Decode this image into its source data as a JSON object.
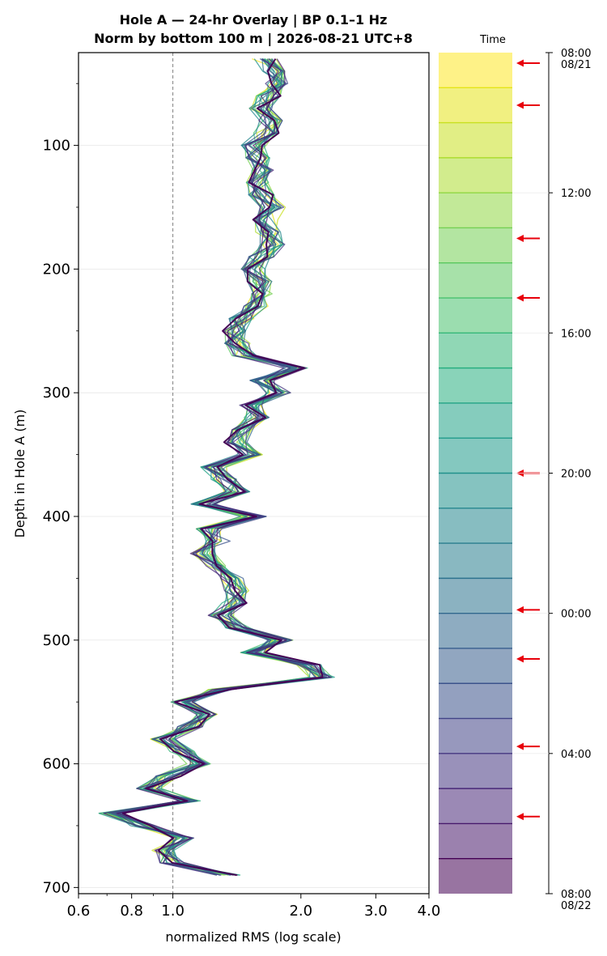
{
  "chart_data": {
    "type": "line",
    "title": "Hole A — 24-hr Overlay  |  BP 0.1–1 Hz",
    "subtitle": "Norm by bottom 100 m  |  2026-08-21 UTC+8",
    "xlabel": "normalized RMS  (log scale)",
    "ylabel": "Depth in Hole A (m)",
    "x_scale": "log",
    "xlim": [
      0.6,
      4.0
    ],
    "ylim": [
      705,
      25
    ],
    "x_ticks": [
      "0.6",
      "0.8",
      "1.0",
      "2.0",
      "3.0",
      "4.0"
    ],
    "x_tick_values": [
      0.6,
      0.8,
      1.0,
      2.0,
      3.0,
      4.0
    ],
    "y_ticks": [
      "100",
      "200",
      "300",
      "400",
      "500",
      "600",
      "700"
    ],
    "y_tick_values": [
      100,
      200,
      300,
      400,
      500,
      600,
      700
    ],
    "reference_line": {
      "x": 1.0,
      "style": "dashed",
      "color": "#808080"
    },
    "grid": "horizontal",
    "depth": [
      30,
      40,
      50,
      60,
      70,
      80,
      90,
      100,
      110,
      120,
      130,
      140,
      150,
      160,
      170,
      180,
      190,
      200,
      210,
      220,
      230,
      240,
      250,
      260,
      270,
      280,
      290,
      300,
      310,
      320,
      330,
      340,
      350,
      360,
      370,
      380,
      390,
      400,
      410,
      420,
      430,
      440,
      450,
      460,
      470,
      480,
      490,
      500,
      510,
      520,
      530,
      540,
      550,
      560,
      570,
      580,
      590,
      600,
      610,
      620,
      630,
      640,
      650,
      660,
      670,
      680,
      690
    ],
    "reference_profile": [
      1.65,
      1.72,
      1.75,
      1.68,
      1.62,
      1.7,
      1.66,
      1.55,
      1.58,
      1.65,
      1.57,
      1.62,
      1.72,
      1.66,
      1.68,
      1.72,
      1.62,
      1.55,
      1.6,
      1.62,
      1.58,
      1.45,
      1.4,
      1.42,
      1.48,
      1.95,
      1.62,
      1.78,
      1.52,
      1.58,
      1.45,
      1.4,
      1.52,
      1.25,
      1.32,
      1.42,
      1.18,
      1.55,
      1.22,
      1.28,
      1.18,
      1.25,
      1.38,
      1.42,
      1.4,
      1.3,
      1.42,
      1.8,
      1.55,
      2.1,
      2.25,
      1.3,
      1.05,
      1.2,
      1.1,
      0.95,
      1.05,
      1.15,
      0.98,
      0.88,
      1.1,
      0.72,
      0.85,
      1.05,
      0.95,
      1.0,
      1.35
    ],
    "series_count": 24,
    "colorbar": {
      "label": "Time",
      "range": [
        "2026-08-21 08:00",
        "2026-08-22 08:00"
      ],
      "ticks": [
        "08:00",
        "12:00",
        "16:00",
        "20:00",
        "00:00",
        "04:00",
        "08:00"
      ],
      "tick_hours": [
        0,
        4,
        8,
        12,
        16,
        20,
        24
      ],
      "date_labels": [
        "08/21",
        "08/22"
      ],
      "colormap": "viridis (reversed: yellow = start, purple = end)",
      "colors": [
        "#fde725",
        "#e5e419",
        "#c8e020",
        "#addc30",
        "#90d743",
        "#75d054",
        "#5ec962",
        "#48c16e",
        "#35b779",
        "#28ae80",
        "#20a386",
        "#1f9a8a",
        "#21918c",
        "#24878e",
        "#287d8e",
        "#2c728e",
        "#31688e",
        "#365d8d",
        "#3b528b",
        "#414487",
        "#453781",
        "#482878",
        "#481a6c",
        "#440154"
      ],
      "marked_hours": [
        0.3,
        1.5,
        5.3,
        7.0,
        12.0,
        15.9,
        17.3,
        19.8,
        21.8
      ],
      "marker_color": "#e8000b"
    }
  }
}
